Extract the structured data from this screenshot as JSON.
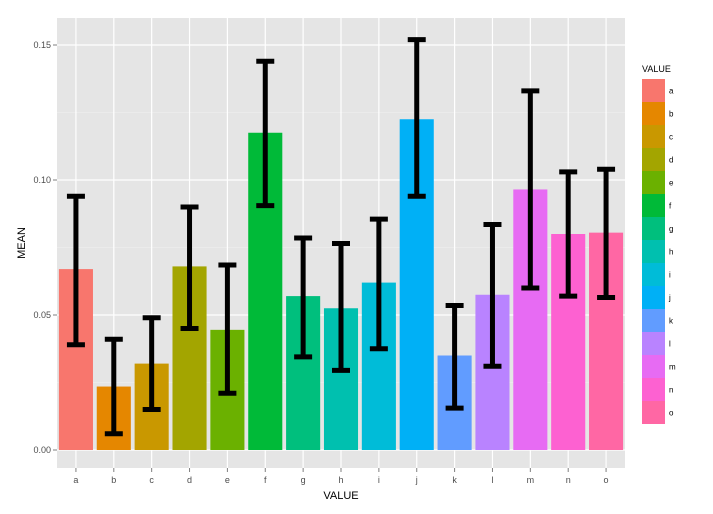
{
  "chart_data": {
    "type": "bar",
    "xlabel": "VALUE",
    "ylabel": "MEAN",
    "ylim": [
      0,
      0.16
    ],
    "yticks": [
      0.0,
      0.05,
      0.1,
      0.15
    ],
    "ytick_labels": [
      "0.00",
      "0.05",
      "0.10",
      "0.15"
    ],
    "categories": [
      "a",
      "b",
      "c",
      "d",
      "e",
      "f",
      "g",
      "h",
      "i",
      "j",
      "k",
      "l",
      "m",
      "n",
      "o"
    ],
    "values": [
      0.067,
      0.0235,
      0.032,
      0.068,
      0.0445,
      0.1175,
      0.057,
      0.0525,
      0.062,
      0.1225,
      0.035,
      0.0575,
      0.0965,
      0.08,
      0.0805
    ],
    "error_low": [
      0.039,
      0.006,
      0.015,
      0.045,
      0.021,
      0.0905,
      0.0345,
      0.0295,
      0.0375,
      0.094,
      0.0155,
      0.031,
      0.06,
      0.057,
      0.0565
    ],
    "error_high": [
      0.094,
      0.041,
      0.049,
      0.09,
      0.0685,
      0.144,
      0.0785,
      0.0765,
      0.0855,
      0.152,
      0.0535,
      0.0835,
      0.133,
      0.103,
      0.104
    ],
    "colors": [
      "#F8766D",
      "#E58700",
      "#C99800",
      "#A3A500",
      "#6BB100",
      "#00BA38",
      "#00BF7D",
      "#00C0AF",
      "#00BCD8",
      "#00B0F6",
      "#619CFF",
      "#B983FF",
      "#E76BF3",
      "#FD61D1",
      "#FF67A4"
    ],
    "grid": true,
    "legend": {
      "title": "VALUE",
      "placement": "right"
    }
  }
}
